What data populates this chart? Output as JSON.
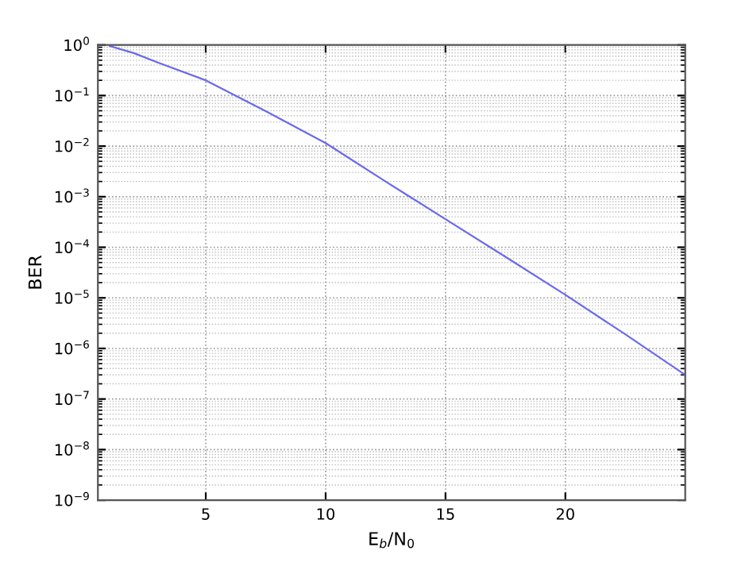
{
  "chart_data": {
    "type": "line",
    "xlabel": "E$_{b}$/N$_{0}$",
    "ylabel": "BER",
    "log": "y",
    "grid": true,
    "xlim": [
      0.5,
      25
    ],
    "xticks": [
      5,
      10,
      15,
      20
    ],
    "ylim": [
      1e-09,
      1
    ],
    "yticks": [
      {
        "value": 1e-09,
        "label": "10$^{−9}$"
      },
      {
        "value": 1e-08,
        "label": "10$^{−8}$"
      },
      {
        "value": 1e-07,
        "label": "10$^{−7}$"
      },
      {
        "value": 1e-06,
        "label": "10$^{−6}$"
      },
      {
        "value": 1e-05,
        "label": "10$^{−5}$"
      },
      {
        "value": 0.0001,
        "label": "10$^{−4}$"
      },
      {
        "value": 0.001,
        "label": "10$^{−3}$"
      },
      {
        "value": 0.01,
        "label": "10$^{−2}$"
      },
      {
        "value": 0.1,
        "label": "10$^{−1}$"
      },
      {
        "value": 1,
        "label": "10$^{0}$"
      }
    ],
    "x": [
      1,
      2,
      3,
      5,
      7.5,
      10,
      12.5,
      15,
      17.5,
      20,
      22.5,
      25
    ],
    "series": [
      {
        "color": "#6a6ae6",
        "values": [
          0.95,
          0.69,
          0.45,
          0.2,
          0.049,
          0.0115,
          0.002,
          0.00036,
          6.5e-05,
          1.15e-05,
          1.9e-06,
          3e-07
        ]
      }
    ]
  }
}
